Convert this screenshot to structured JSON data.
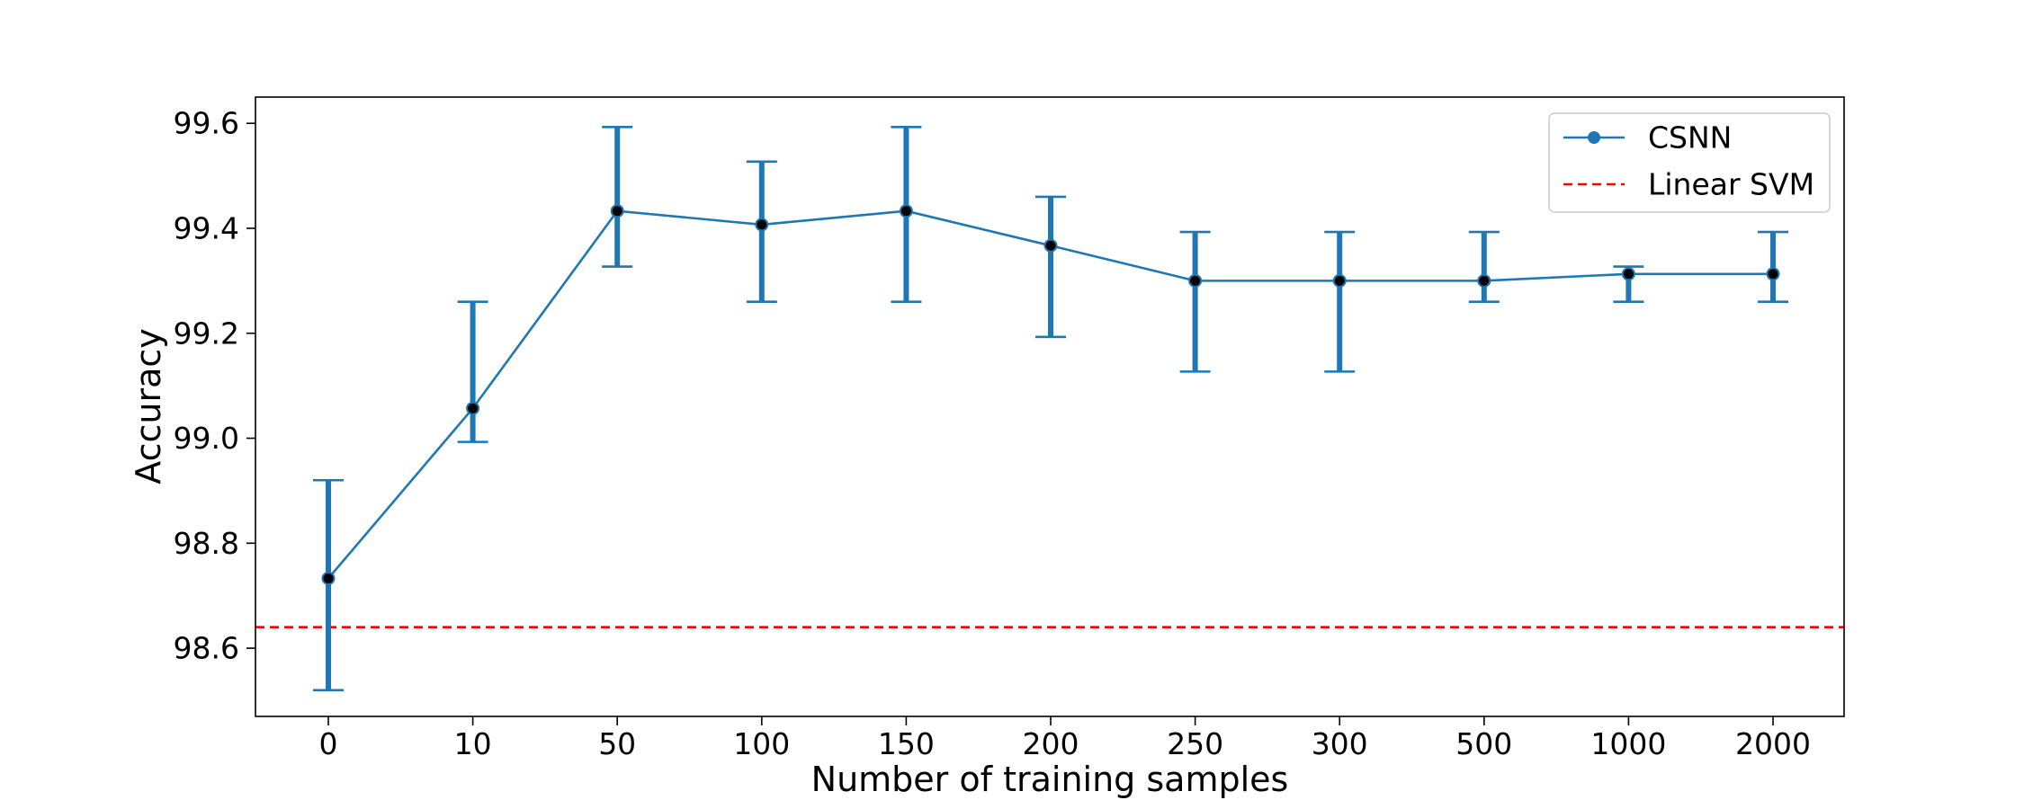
{
  "chart_data": {
    "type": "line",
    "title": "",
    "xlabel": "Number of training samples",
    "ylabel": "Accuracy",
    "categories": [
      "0",
      "10",
      "50",
      "100",
      "150",
      "200",
      "250",
      "300",
      "500",
      "1000",
      "2000"
    ],
    "ylim": [
      98.47,
      99.65
    ],
    "yticks": [
      "98.6",
      "98.8",
      "99.0",
      "99.2",
      "99.4",
      "99.6"
    ],
    "series": [
      {
        "name": "CSNN",
        "color": "#1f77b4",
        "marker": "circle",
        "values": [
          98.733,
          99.057,
          99.433,
          99.407,
          99.433,
          99.367,
          99.3,
          99.3,
          99.3,
          99.313,
          99.313
        ],
        "error_lower": [
          98.52,
          98.993,
          99.327,
          99.26,
          99.26,
          99.193,
          99.127,
          99.127,
          99.26,
          99.26,
          99.26
        ],
        "error_upper": [
          98.92,
          99.26,
          99.593,
          99.527,
          99.593,
          99.46,
          99.393,
          99.393,
          99.393,
          99.327,
          99.393
        ]
      }
    ],
    "reference_lines": [
      {
        "name": "Linear SVM",
        "y": 98.64,
        "color": "#ff0000",
        "style": "dashed"
      }
    ],
    "grid": false,
    "legend_position": "top-right"
  }
}
